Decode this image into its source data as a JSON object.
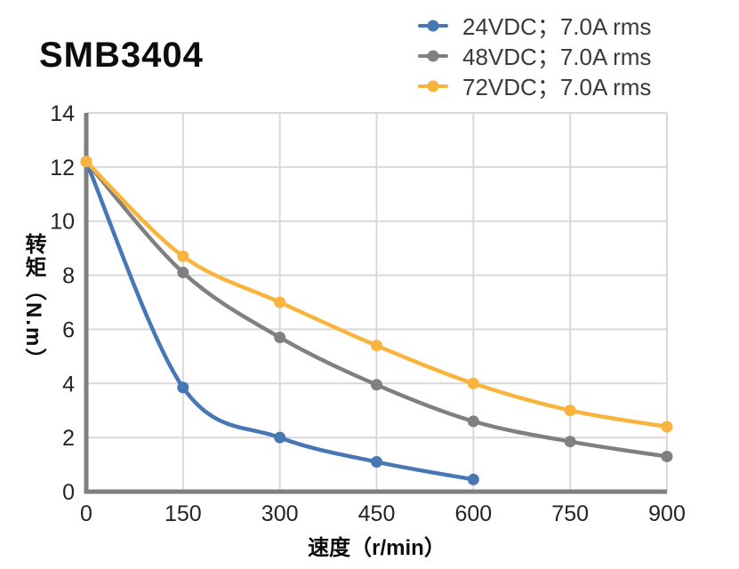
{
  "page": {
    "background": "#ffffff"
  },
  "header": {
    "title": "SMB3404"
  },
  "legend": {
    "items": [
      {
        "label": "24VDC；7.0A rms",
        "color": "#4878B4"
      },
      {
        "label": "48VDC；7.0A rms",
        "color": "#808080"
      },
      {
        "label": "72VDC；7.0A rms",
        "color": "#F8B43C"
      }
    ]
  },
  "chart_data": {
    "type": "line",
    "title": "SMB3404",
    "xlabel": "速度（r/min）",
    "ylabel": "转矩（N.m）",
    "xlim": [
      0,
      900
    ],
    "ylim": [
      0,
      14
    ],
    "xticks": [
      0,
      150,
      300,
      450,
      600,
      750,
      900
    ],
    "yticks": [
      0,
      2,
      4,
      6,
      8,
      10,
      12,
      14
    ],
    "grid": true,
    "legend_position": "top-right",
    "marker": "circle",
    "axis_color": "#7F7F7F",
    "gridline_color": "#D9D9D9",
    "series": [
      {
        "name": "24VDC；7.0A rms",
        "color": "#4878B4",
        "x": [
          0,
          150,
          300,
          450,
          600
        ],
        "values": [
          12.2,
          3.85,
          2.0,
          1.1,
          0.45
        ]
      },
      {
        "name": "48VDC；7.0A rms",
        "color": "#808080",
        "x": [
          0,
          150,
          300,
          450,
          600,
          750,
          900
        ],
        "values": [
          12.2,
          8.1,
          5.7,
          3.95,
          2.6,
          1.85,
          1.3
        ]
      },
      {
        "name": "72VDC；7.0A rms",
        "color": "#F8B43C",
        "x": [
          0,
          150,
          300,
          450,
          600,
          750,
          900
        ],
        "values": [
          12.2,
          8.7,
          7.0,
          5.4,
          4.0,
          3.0,
          2.4
        ]
      }
    ]
  }
}
